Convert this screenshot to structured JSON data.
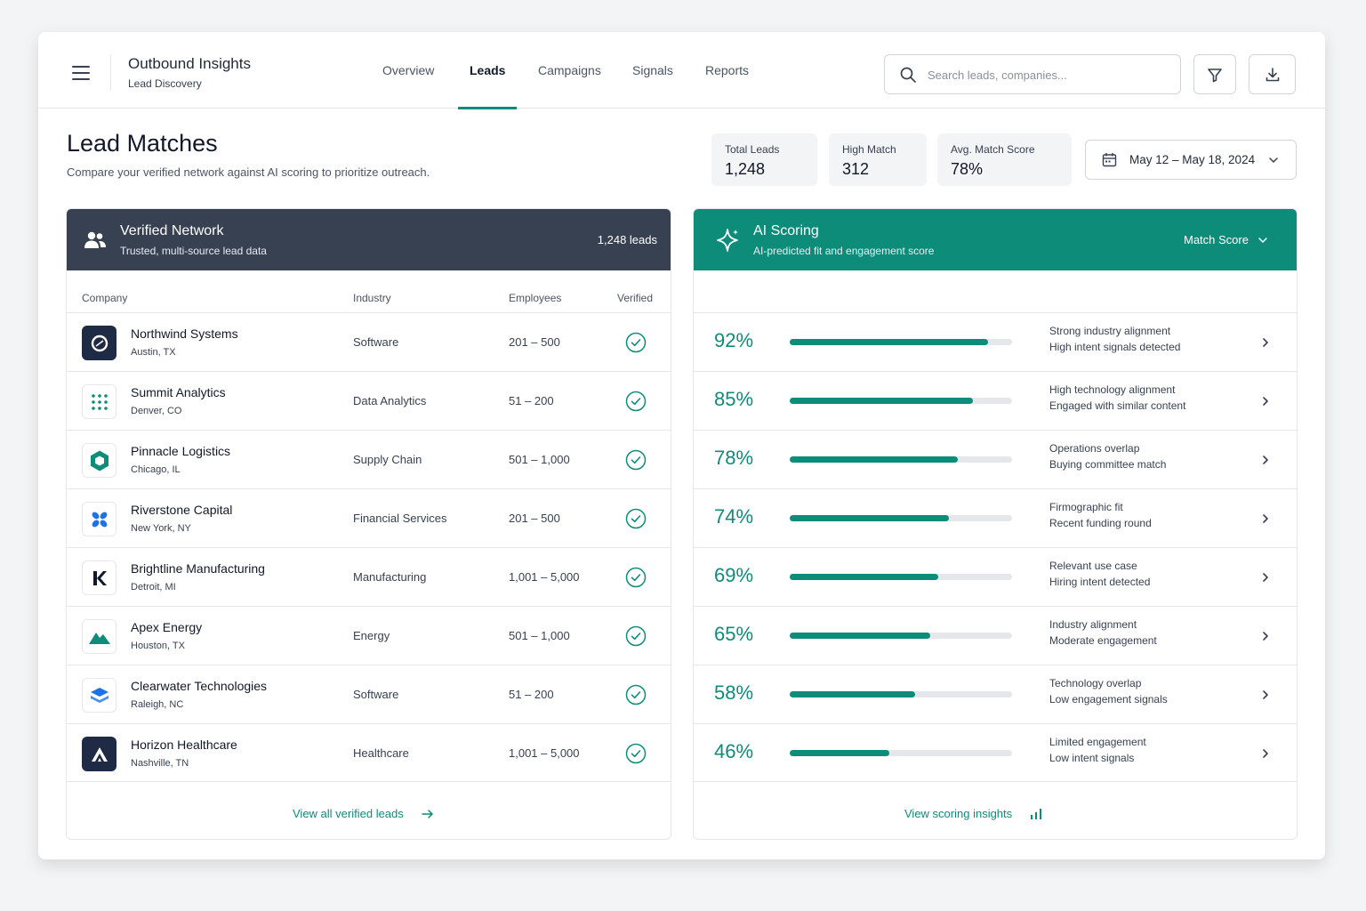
{
  "header": {
    "app_title": "Outbound Insights",
    "app_subtitle": "Lead Discovery",
    "nav": [
      "Overview",
      "Leads",
      "Campaigns",
      "Signals",
      "Reports"
    ],
    "active_nav": "Leads",
    "search_placeholder": "Search leads, companies..."
  },
  "page": {
    "title": "Lead Matches",
    "subtitle": "Compare your verified network against AI scoring to prioritize outreach."
  },
  "stats": [
    {
      "label": "Total Leads",
      "value": "1,248"
    },
    {
      "label": "High Match",
      "value": "312"
    },
    {
      "label": "Avg. Match Score",
      "value": "78%"
    }
  ],
  "date_range": "May 12 – May 18, 2024",
  "verified": {
    "title": "Verified Network",
    "subtitle": "Trusted, multi-source lead data",
    "count": "1,248 leads",
    "columns": [
      "Company",
      "Industry",
      "Employees",
      "Verified"
    ],
    "rows": [
      {
        "name": "Northwind Systems",
        "location": "Austin, TX",
        "industry": "Software",
        "employees": "201 – 500"
      },
      {
        "name": "Summit Analytics",
        "location": "Denver, CO",
        "industry": "Data Analytics",
        "employees": "51 – 200"
      },
      {
        "name": "Pinnacle Logistics",
        "location": "Chicago, IL",
        "industry": "Supply Chain",
        "employees": "501 – 1,000"
      },
      {
        "name": "Riverstone Capital",
        "location": "New York, NY",
        "industry": "Financial Services",
        "employees": "201 – 500"
      },
      {
        "name": "Brightline Manufacturing",
        "location": "Detroit, MI",
        "industry": "Manufacturing",
        "employees": "1,001 – 5,000"
      },
      {
        "name": "Apex Energy",
        "location": "Houston, TX",
        "industry": "Energy",
        "employees": "501 – 1,000"
      },
      {
        "name": "Clearwater Technologies",
        "location": "Raleigh, NC",
        "industry": "Software",
        "employees": "51 – 200"
      },
      {
        "name": "Horizon Healthcare",
        "location": "Nashville, TN",
        "industry": "Healthcare",
        "employees": "1,001 – 5,000"
      }
    ],
    "footer_link": "View all verified leads"
  },
  "ai": {
    "title": "AI Scoring",
    "subtitle": "AI-predicted fit and engagement score",
    "sort_label": "Match Score",
    "rows": [
      {
        "score": "92%",
        "fraction": 0.92,
        "reason1": "Strong industry alignment",
        "reason2": "High intent signals detected"
      },
      {
        "score": "85%",
        "fraction": 0.85,
        "reason1": "High technology alignment",
        "reason2": "Engaged with similar content"
      },
      {
        "score": "78%",
        "fraction": 0.78,
        "reason1": "Operations overlap",
        "reason2": "Buying committee match"
      },
      {
        "score": "74%",
        "fraction": 0.74,
        "reason1": "Firmographic fit",
        "reason2": "Recent funding round"
      },
      {
        "score": "69%",
        "fraction": 0.69,
        "reason1": "Relevant use case",
        "reason2": "Hiring intent detected"
      },
      {
        "score": "65%",
        "fraction": 0.65,
        "reason1": "Industry alignment",
        "reason2": "Moderate engagement"
      },
      {
        "score": "58%",
        "fraction": 0.58,
        "reason1": "Technology overlap",
        "reason2": "Low engagement signals"
      },
      {
        "score": "46%",
        "fraction": 0.46,
        "reason1": "Limited engagement",
        "reason2": "Low intent signals"
      }
    ],
    "footer_link": "View scoring insights"
  },
  "colors": {
    "accent": "#0d8c7a",
    "verified_header": "#374151",
    "ai_header": "#0d8c7a"
  }
}
